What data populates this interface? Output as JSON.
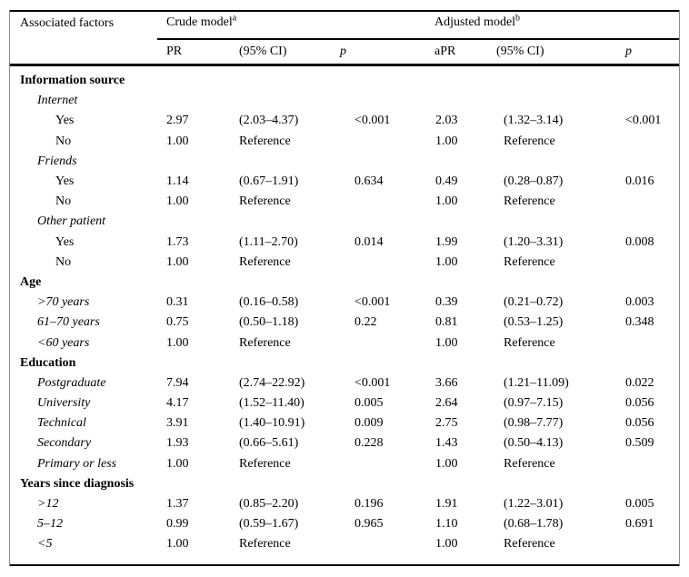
{
  "colors": {
    "text": "#000000",
    "background": "#ffffff",
    "rule": "#000000",
    "side_border": "#8a8a8a"
  },
  "table": {
    "header": {
      "associated_factors": "Associated factors",
      "crude": {
        "label": "Crude model",
        "sup": "a"
      },
      "adjusted": {
        "label": "Adjusted model",
        "sup": "b"
      },
      "sub": [
        "PR",
        "(95% CI)",
        "p",
        "aPR",
        "(95% CI)",
        "p"
      ]
    },
    "rows": [
      {
        "label": "Information source",
        "style": "section",
        "cells": [
          "",
          "",
          "",
          "",
          "",
          ""
        ]
      },
      {
        "label": "Internet",
        "style": "group",
        "cells": [
          "",
          "",
          "",
          "",
          "",
          ""
        ]
      },
      {
        "label": "Yes",
        "style": "item",
        "cells": [
          "2.97",
          "(2.03–4.37)",
          "<0.001",
          "2.03",
          "(1.32–3.14)",
          "<0.001"
        ]
      },
      {
        "label": "No",
        "style": "item",
        "cells": [
          "1.00",
          "Reference",
          "",
          "1.00",
          "Reference",
          ""
        ]
      },
      {
        "label": "Friends",
        "style": "group",
        "cells": [
          "",
          "",
          "",
          "",
          "",
          ""
        ]
      },
      {
        "label": "Yes",
        "style": "item",
        "cells": [
          "1.14",
          "(0.67–1.91)",
          "0.634",
          "0.49",
          "(0.28–0.87)",
          "0.016"
        ]
      },
      {
        "label": "No",
        "style": "item",
        "cells": [
          "1.00",
          "Reference",
          "",
          "1.00",
          "Reference",
          ""
        ]
      },
      {
        "label": "Other patient",
        "style": "group",
        "cells": [
          "",
          "",
          "",
          "",
          "",
          ""
        ]
      },
      {
        "label": "Yes",
        "style": "item",
        "cells": [
          "1.73",
          "(1.11–2.70)",
          "0.014",
          "1.99",
          "(1.20–3.31)",
          "0.008"
        ]
      },
      {
        "label": "No",
        "style": "item",
        "cells": [
          "1.00",
          "Reference",
          "",
          "1.00",
          "Reference",
          ""
        ]
      },
      {
        "label": "Age",
        "style": "section",
        "cells": [
          "",
          "",
          "",
          "",
          "",
          ""
        ]
      },
      {
        "label": ">70 years",
        "style": "group",
        "cells": [
          "0.31",
          "(0.16–0.58)",
          "<0.001",
          "0.39",
          "(0.21–0.72)",
          "0.003"
        ]
      },
      {
        "label": "61–70 years",
        "style": "group",
        "cells": [
          "0.75",
          "(0.50–1.18)",
          "0.22",
          "0.81",
          "(0.53–1.25)",
          "0.348"
        ]
      },
      {
        "label": "<60 years",
        "style": "group",
        "cells": [
          "1.00",
          "Reference",
          "",
          "1.00",
          "Reference",
          ""
        ]
      },
      {
        "label": "Education",
        "style": "section",
        "cells": [
          "",
          "",
          "",
          "",
          "",
          ""
        ]
      },
      {
        "label": "Postgraduate",
        "style": "group",
        "cells": [
          "7.94",
          "(2.74–22.92)",
          "<0.001",
          "3.66",
          "(1.21–11.09)",
          "0.022"
        ]
      },
      {
        "label": "University",
        "style": "group",
        "cells": [
          "4.17",
          "(1.52–11.40)",
          "0.005",
          "2.64",
          "(0.97–7.15)",
          "0.056"
        ]
      },
      {
        "label": "Technical",
        "style": "group",
        "cells": [
          "3.91",
          "(1.40–10.91)",
          "0.009",
          "2.75",
          "(0.98–7.77)",
          "0.056"
        ]
      },
      {
        "label": "Secondary",
        "style": "group",
        "cells": [
          "1.93",
          "(0.66–5.61)",
          "0.228",
          "1.43",
          "(0.50–4.13)",
          "0.509"
        ]
      },
      {
        "label": "Primary or less",
        "style": "group",
        "cells": [
          "1.00",
          "Reference",
          "",
          "1.00",
          "Reference",
          ""
        ]
      },
      {
        "label": "Years since diagnosis",
        "style": "section",
        "cells": [
          "",
          "",
          "",
          "",
          "",
          ""
        ]
      },
      {
        "label": ">12",
        "style": "group",
        "cells": [
          "1.37",
          "(0.85–2.20)",
          "0.196",
          "1.91",
          "(1.22–3.01)",
          "0.005"
        ]
      },
      {
        "label": "5–12",
        "style": "group",
        "cells": [
          "0.99",
          "(0.59–1.67)",
          "0.965",
          "1.10",
          "(0.68–1.78)",
          "0.691"
        ]
      },
      {
        "label": "<5",
        "style": "group",
        "cells": [
          "1.00",
          "Reference",
          "",
          "1.00",
          "Reference",
          ""
        ]
      }
    ]
  }
}
